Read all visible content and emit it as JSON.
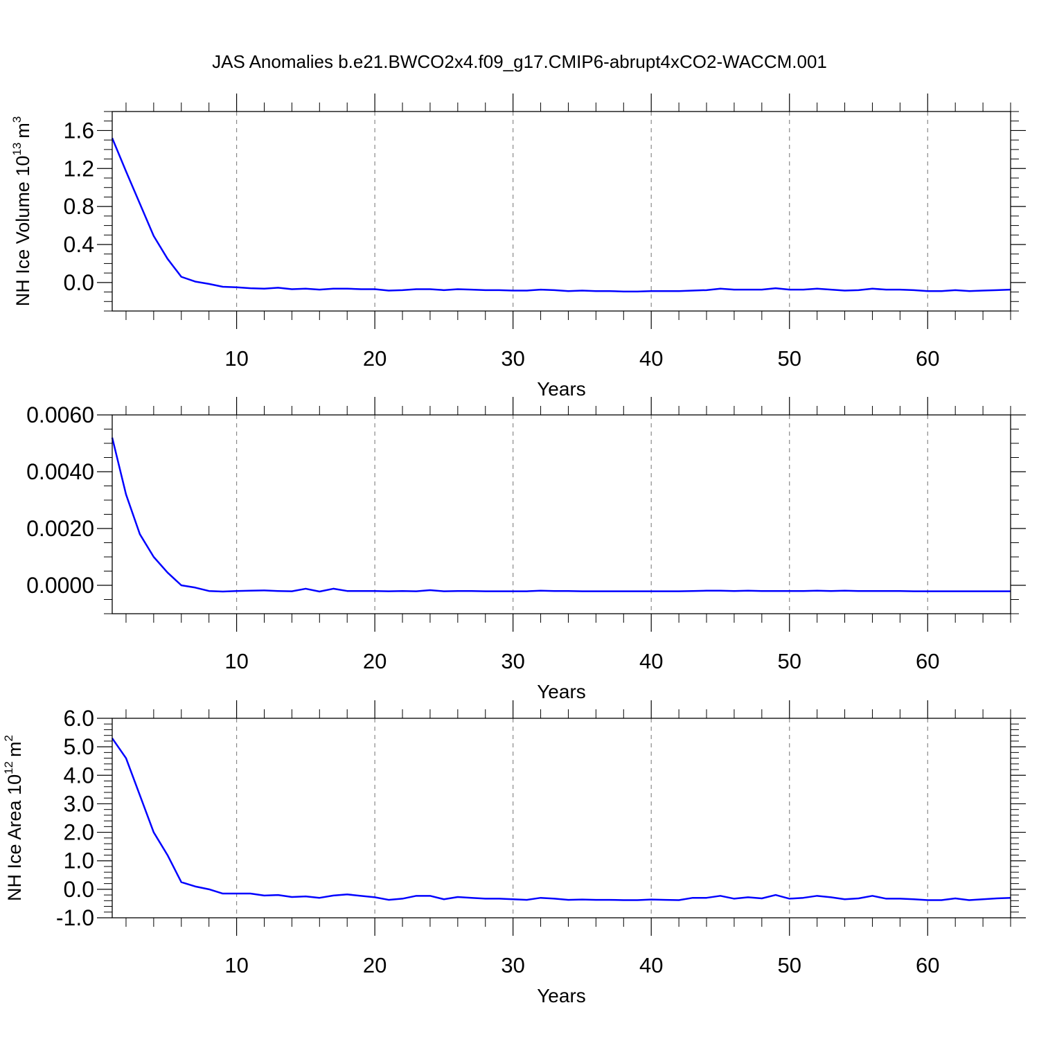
{
  "title": "JAS Anomalies b.e21.BWCO2x4.f09_g17.CMIP6-abrupt4xCO2-WACCM.001",
  "chart_data": [
    {
      "type": "line",
      "ylabel": [
        "NH Ice Volume 10",
        "13",
        "m",
        "3"
      ],
      "xlabel": "Years",
      "xlim": [
        1,
        66
      ],
      "xticks": [
        10,
        20,
        30,
        40,
        50,
        60
      ],
      "ylim": [
        -0.3,
        1.8
      ],
      "yticks": [
        {
          "value": 0,
          "label": "0.0"
        },
        0.4,
        0.8,
        1.2,
        1.6
      ],
      "grid": true,
      "x": [
        1,
        2,
        3,
        4,
        5,
        6,
        7,
        8,
        9,
        10,
        11,
        12,
        13,
        14,
        15,
        16,
        17,
        18,
        19,
        20,
        21,
        22,
        23,
        24,
        25,
        26,
        27,
        28,
        29,
        30,
        31,
        32,
        33,
        34,
        35,
        36,
        37,
        38,
        39,
        40,
        41,
        42,
        43,
        44,
        45,
        46,
        47,
        48,
        49,
        50,
        51,
        52,
        53,
        54,
        55,
        56,
        57,
        58,
        59,
        60,
        61,
        62,
        63,
        64,
        65,
        66
      ],
      "series": [
        {
          "color": "#0000ff",
          "values": [
            1.52,
            1.17,
            0.83,
            0.49,
            0.25,
            0.06,
            0.01,
            -0.015,
            -0.045,
            -0.05,
            -0.06,
            -0.065,
            -0.055,
            -0.07,
            -0.065,
            -0.075,
            -0.065,
            -0.065,
            -0.07,
            -0.07,
            -0.085,
            -0.08,
            -0.07,
            -0.07,
            -0.08,
            -0.07,
            -0.075,
            -0.08,
            -0.08,
            -0.085,
            -0.085,
            -0.075,
            -0.08,
            -0.09,
            -0.085,
            -0.09,
            -0.09,
            -0.095,
            -0.095,
            -0.09,
            -0.09,
            -0.09,
            -0.085,
            -0.08,
            -0.065,
            -0.075,
            -0.075,
            -0.075,
            -0.06,
            -0.075,
            -0.075,
            -0.065,
            -0.075,
            -0.085,
            -0.08,
            -0.065,
            -0.075,
            -0.075,
            -0.08,
            -0.09,
            -0.09,
            -0.08,
            -0.09,
            -0.085,
            -0.08,
            -0.075
          ]
        }
      ]
    },
    {
      "type": "line",
      "xlabel": "Years",
      "xlim": [
        1,
        66
      ],
      "xticks": [
        10,
        20,
        30,
        40,
        50,
        60
      ],
      "ylim": [
        -0.001,
        0.006
      ],
      "yticks": [
        {
          "value": 0,
          "label": "0.0000"
        },
        {
          "value": 0.002,
          "label": "0.0020"
        },
        {
          "value": 0.004,
          "label": "0.0040"
        },
        {
          "value": 0.006,
          "label": "0.0060"
        }
      ],
      "grid": true,
      "x": [
        1,
        2,
        3,
        4,
        5,
        6,
        7,
        8,
        9,
        10,
        11,
        12,
        13,
        14,
        15,
        16,
        17,
        18,
        19,
        20,
        21,
        22,
        23,
        24,
        25,
        26,
        27,
        28,
        29,
        30,
        31,
        32,
        33,
        34,
        35,
        36,
        37,
        38,
        39,
        40,
        41,
        42,
        43,
        44,
        45,
        46,
        47,
        48,
        49,
        50,
        51,
        52,
        53,
        54,
        55,
        56,
        57,
        58,
        59,
        60,
        61,
        62,
        63,
        64,
        65,
        66
      ],
      "series": [
        {
          "color": "#0000ff",
          "values": [
            0.0052,
            0.0032,
            0.0018,
            0.001,
            0.00045,
            0,
            -8e-05,
            -0.0002,
            -0.00022,
            -0.0002,
            -0.00019,
            -0.00018,
            -0.0002,
            -0.00021,
            -0.00012,
            -0.00022,
            -0.00012,
            -0.0002,
            -0.0002,
            -0.0002,
            -0.00021,
            -0.0002,
            -0.00021,
            -0.00017,
            -0.00021,
            -0.0002,
            -0.0002,
            -0.00021,
            -0.00021,
            -0.00021,
            -0.00021,
            -0.00019,
            -0.0002,
            -0.0002,
            -0.00021,
            -0.00021,
            -0.00021,
            -0.00021,
            -0.00021,
            -0.00021,
            -0.00021,
            -0.00021,
            -0.0002,
            -0.00019,
            -0.00019,
            -0.0002,
            -0.00019,
            -0.0002,
            -0.0002,
            -0.0002,
            -0.0002,
            -0.00019,
            -0.0002,
            -0.00019,
            -0.0002,
            -0.0002,
            -0.0002,
            -0.0002,
            -0.00021,
            -0.00021,
            -0.00021,
            -0.00021,
            -0.00021,
            -0.00021,
            -0.00021,
            -0.00021
          ]
        }
      ]
    },
    {
      "type": "line",
      "ylabel": [
        "NH Ice Area 10",
        "12",
        "m",
        "2"
      ],
      "xlabel": "Years",
      "xlim": [
        1,
        66
      ],
      "xticks": [
        10,
        20,
        30,
        40,
        50,
        60
      ],
      "ylim": [
        -1,
        6
      ],
      "yticks": [
        {
          "value": -1,
          "label": "-1.0"
        },
        {
          "value": 0,
          "label": "0.0"
        },
        {
          "value": 1,
          "label": "1.0"
        },
        {
          "value": 2,
          "label": "2.0"
        },
        {
          "value": 3,
          "label": "3.0"
        },
        {
          "value": 4,
          "label": "4.0"
        },
        {
          "value": 5,
          "label": "5.0"
        },
        {
          "value": 6,
          "label": "6.0"
        }
      ],
      "grid": true,
      "x": [
        1,
        2,
        3,
        4,
        5,
        6,
        7,
        8,
        9,
        10,
        11,
        12,
        13,
        14,
        15,
        16,
        17,
        18,
        19,
        20,
        21,
        22,
        23,
        24,
        25,
        26,
        27,
        28,
        29,
        30,
        31,
        32,
        33,
        34,
        35,
        36,
        37,
        38,
        39,
        40,
        41,
        42,
        43,
        44,
        45,
        46,
        47,
        48,
        49,
        50,
        51,
        52,
        53,
        54,
        55,
        56,
        57,
        58,
        59,
        60,
        61,
        62,
        63,
        64,
        65,
        66
      ],
      "series": [
        {
          "color": "#0000ff",
          "values": [
            5.3,
            4.6,
            3.3,
            2.0,
            1.2,
            0.25,
            0.1,
            0.0,
            -0.15,
            -0.15,
            -0.15,
            -0.22,
            -0.2,
            -0.27,
            -0.25,
            -0.3,
            -0.22,
            -0.18,
            -0.23,
            -0.28,
            -0.37,
            -0.33,
            -0.23,
            -0.23,
            -0.35,
            -0.27,
            -0.3,
            -0.33,
            -0.33,
            -0.35,
            -0.37,
            -0.3,
            -0.33,
            -0.37,
            -0.36,
            -0.37,
            -0.37,
            -0.38,
            -0.38,
            -0.36,
            -0.37,
            -0.38,
            -0.3,
            -0.3,
            -0.23,
            -0.33,
            -0.28,
            -0.32,
            -0.2,
            -0.33,
            -0.3,
            -0.23,
            -0.28,
            -0.35,
            -0.32,
            -0.23,
            -0.33,
            -0.33,
            -0.35,
            -0.38,
            -0.38,
            -0.32,
            -0.38,
            -0.35,
            -0.32,
            -0.3
          ]
        }
      ]
    }
  ]
}
